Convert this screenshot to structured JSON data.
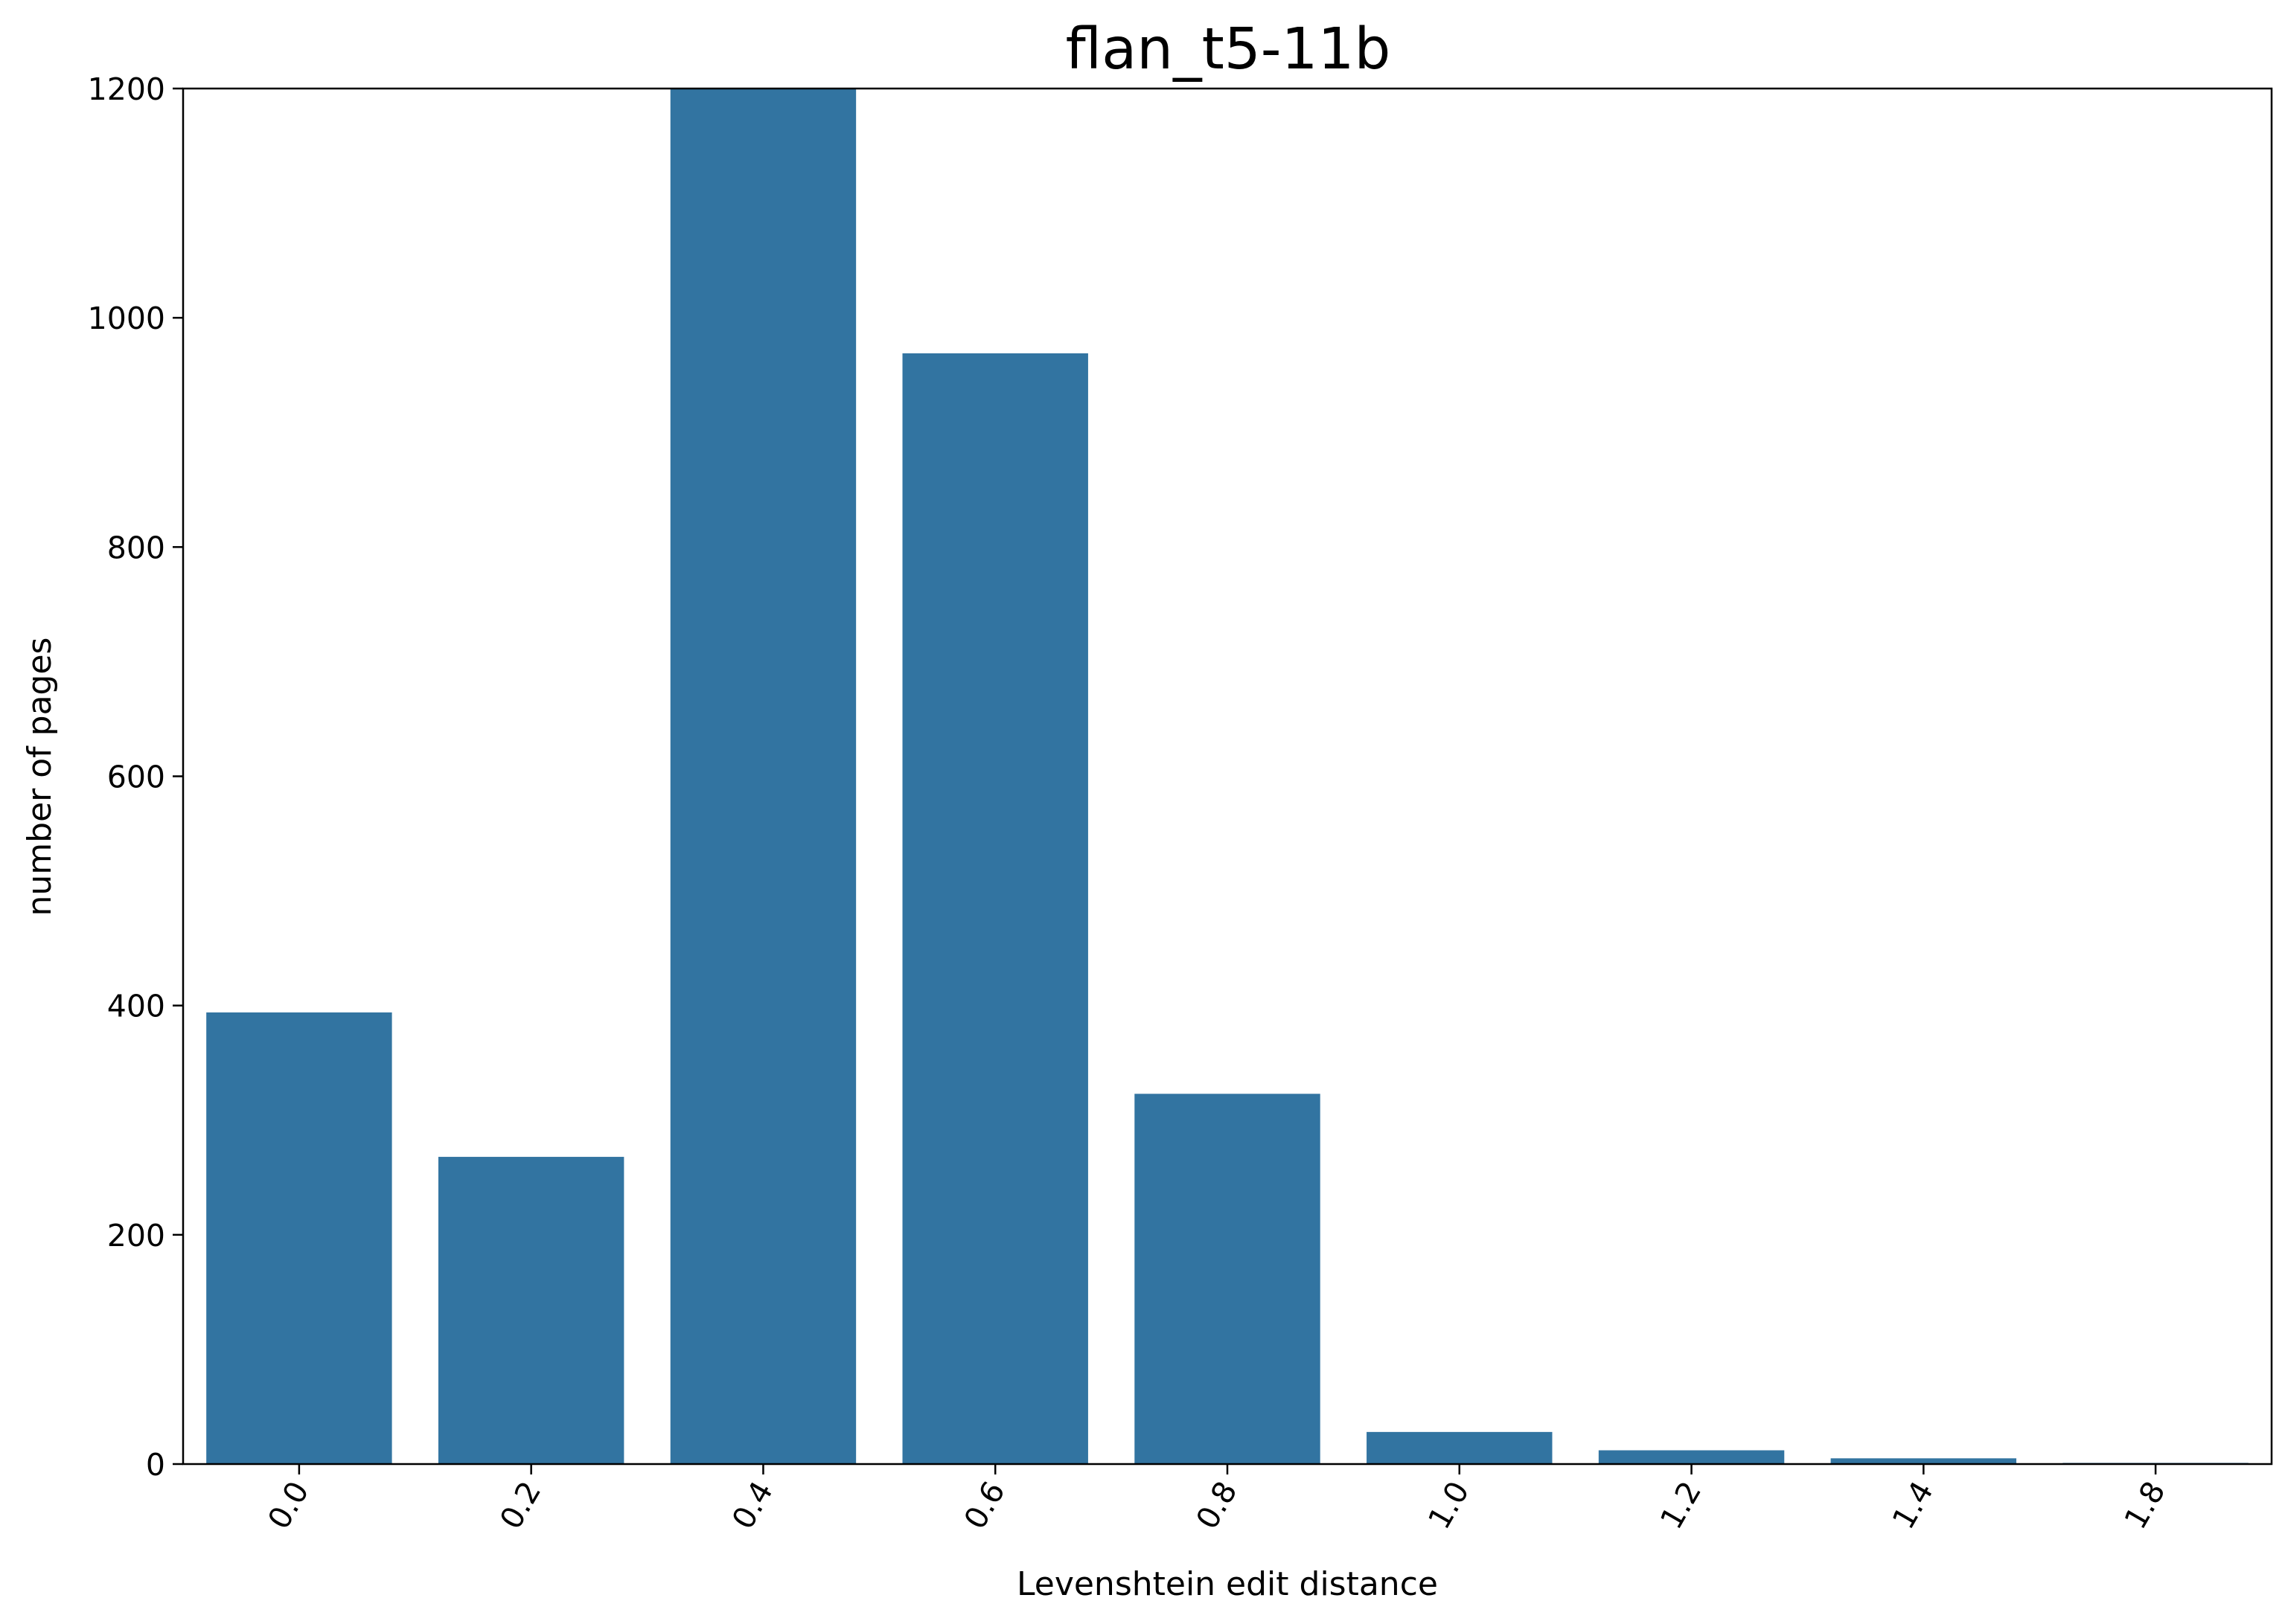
{
  "chart_data": {
    "type": "bar",
    "title": "flan_t5-11b",
    "xlabel": "Levenshtein edit distance",
    "ylabel": "number of pages",
    "categories": [
      "0.0",
      "0.2",
      "0.4",
      "0.6",
      "0.8",
      "1.0",
      "1.2",
      "1.4",
      "1.8"
    ],
    "values": [
      394,
      268,
      1200,
      969,
      323,
      28,
      12,
      5,
      1
    ],
    "ylim": [
      0,
      1200
    ],
    "yticks": [
      "0",
      "200",
      "400",
      "600",
      "800",
      "1000",
      "1200"
    ],
    "bar_color": "#3274a1",
    "grid": false,
    "legend": "none"
  }
}
